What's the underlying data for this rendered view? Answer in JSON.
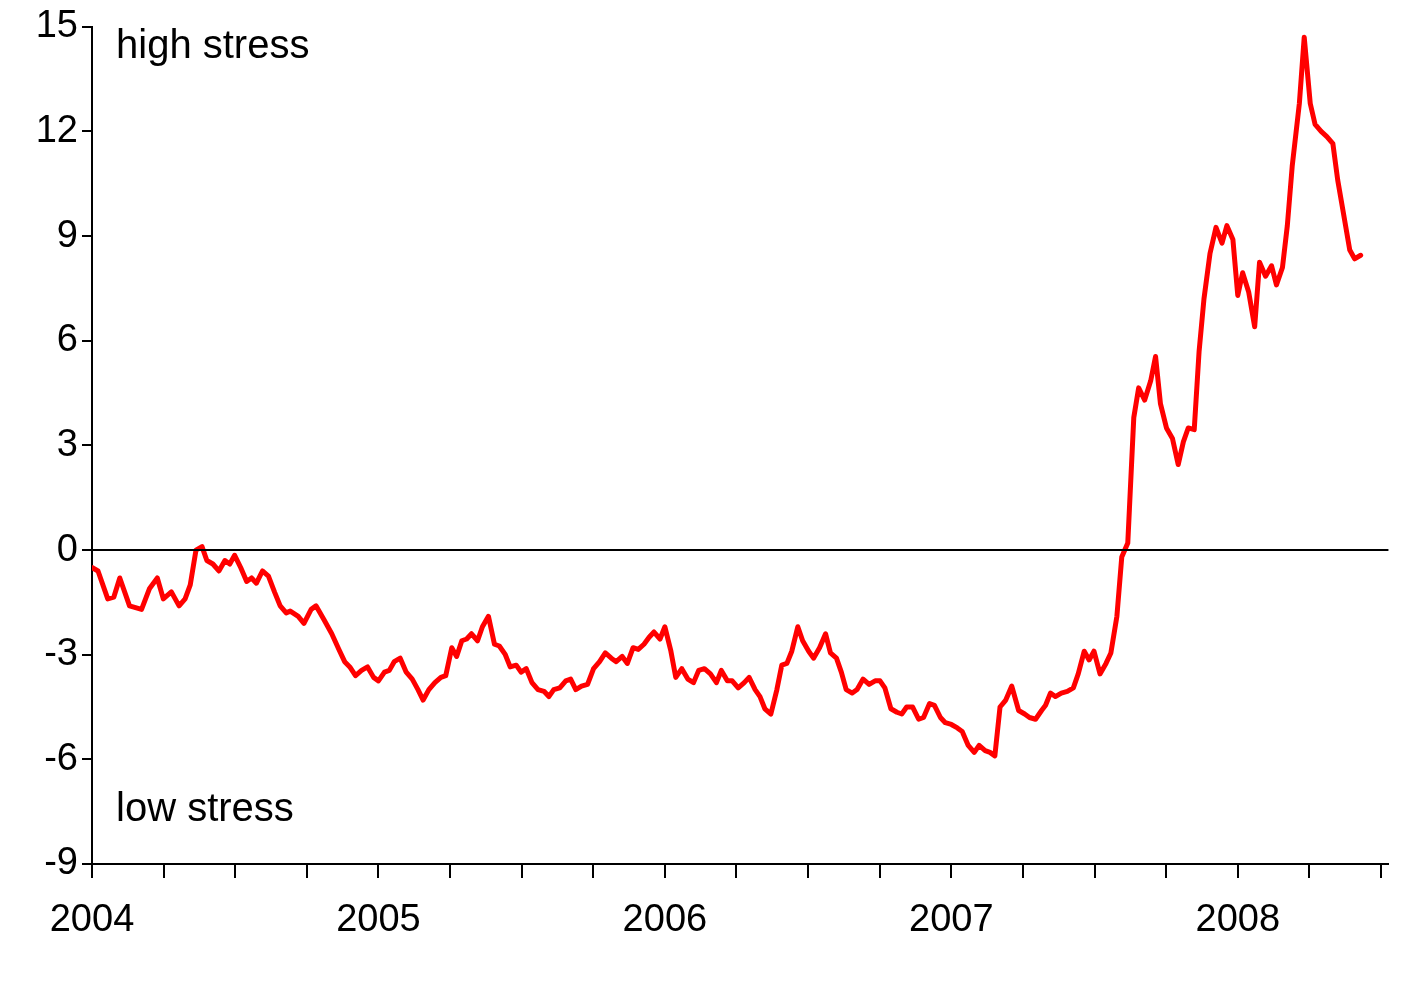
{
  "chart_data": {
    "type": "line",
    "annotations": [
      "high stress",
      "low stress"
    ],
    "x": [
      2004.0,
      2004.021,
      2004.055,
      2004.076,
      2004.097,
      2004.131,
      2004.173,
      2004.201,
      2004.228,
      2004.249,
      2004.277,
      2004.304,
      2004.325,
      2004.343,
      2004.363,
      2004.384,
      2004.401,
      2004.422,
      2004.443,
      2004.464,
      2004.481,
      2004.498,
      2004.519,
      2004.54,
      2004.557,
      2004.574,
      2004.595,
      2004.616,
      2004.637,
      2004.657,
      2004.678,
      2004.692,
      2004.72,
      2004.74,
      2004.765,
      2004.782,
      2004.81,
      2004.837,
      2004.862,
      2004.882,
      2004.9,
      2004.92,
      2004.941,
      2004.962,
      2004.983,
      2005.0,
      2005.021,
      2005.038,
      2005.055,
      2005.076,
      2005.097,
      2005.118,
      2005.138,
      2005.156,
      2005.176,
      2005.197,
      2005.218,
      2005.235,
      2005.256,
      2005.273,
      2005.291,
      2005.308,
      2005.325,
      2005.346,
      2005.363,
      2005.384,
      2005.405,
      2005.422,
      2005.443,
      2005.46,
      2005.481,
      2005.498,
      2005.516,
      2005.536,
      2005.557,
      2005.578,
      2005.595,
      2005.612,
      2005.633,
      2005.654,
      2005.671,
      2005.689,
      2005.709,
      2005.73,
      2005.751,
      2005.772,
      2005.792,
      2005.813,
      2005.83,
      2005.851,
      2005.869,
      2005.889,
      2005.907,
      2005.927,
      2005.945,
      2005.962,
      2005.983,
      2006.0,
      2006.021,
      2006.038,
      2006.059,
      2006.08,
      2006.1,
      2006.118,
      2006.138,
      2006.159,
      2006.18,
      2006.197,
      2006.218,
      2006.235,
      2006.256,
      2006.277,
      2006.294,
      2006.315,
      2006.332,
      2006.349,
      2006.37,
      2006.391,
      2006.408,
      2006.426,
      2006.443,
      2006.464,
      2006.481,
      2006.502,
      2006.519,
      2006.54,
      2006.561,
      2006.578,
      2006.599,
      2006.616,
      2006.633,
      2006.654,
      2006.671,
      2006.692,
      2006.713,
      2006.734,
      2006.751,
      2006.768,
      2006.789,
      2006.81,
      2006.827,
      2006.844,
      2006.865,
      2006.886,
      2006.903,
      2006.924,
      2006.941,
      2006.962,
      2006.979,
      2007.0,
      2007.021,
      2007.038,
      2007.059,
      2007.08,
      2007.097,
      2007.118,
      2007.135,
      2007.152,
      2007.17,
      2007.19,
      2007.211,
      2007.235,
      2007.256,
      2007.273,
      2007.294,
      2007.315,
      2007.329,
      2007.346,
      2007.363,
      2007.384,
      2007.405,
      2007.426,
      2007.443,
      2007.464,
      2007.481,
      2007.498,
      2007.519,
      2007.54,
      2007.557,
      2007.578,
      2007.595,
      2007.616,
      2007.637,
      2007.654,
      2007.675,
      2007.696,
      2007.713,
      2007.73,
      2007.751,
      2007.772,
      2007.792,
      2007.81,
      2007.827,
      2007.848,
      2007.865,
      2007.882,
      2007.903,
      2007.924,
      2007.945,
      2007.962,
      2007.983,
      2008.0,
      2008.017,
      2008.038,
      2008.059,
      2008.076,
      2008.097,
      2008.118,
      2008.135,
      2008.156,
      2008.173,
      2008.19,
      2008.215,
      2008.232,
      2008.253,
      2008.27,
      2008.291,
      2008.311,
      2008.332,
      2008.349,
      2008.37,
      2008.391,
      2008.408,
      2008.429
    ],
    "series": [
      {
        "color": "#ff0000",
        "values": [
          -0.5,
          -0.6,
          -1.4,
          -1.35,
          -0.8,
          -1.6,
          -1.7,
          -1.1,
          -0.8,
          -1.4,
          -1.2,
          -1.6,
          -1.4,
          -1.0,
          0,
          0.1,
          -0.3,
          -0.4,
          -0.6,
          -0.3,
          -0.4,
          -0.15,
          -0.5,
          -0.9,
          -0.8,
          -0.95,
          -0.6,
          -0.75,
          -1.2,
          -1.6,
          -1.8,
          -1.75,
          -1.9,
          -2.1,
          -1.7,
          -1.6,
          -2.0,
          -2.4,
          -2.85,
          -3.2,
          -3.35,
          -3.6,
          -3.45,
          -3.35,
          -3.65,
          -3.75,
          -3.5,
          -3.45,
          -3.2,
          -3.1,
          -3.5,
          -3.7,
          -4.0,
          -4.3,
          -4.0,
          -3.8,
          -3.65,
          -3.6,
          -2.8,
          -3.05,
          -2.6,
          -2.55,
          -2.4,
          -2.6,
          -2.2,
          -1.9,
          -2.7,
          -2.75,
          -3.0,
          -3.35,
          -3.3,
          -3.5,
          -3.4,
          -3.8,
          -4.0,
          -4.05,
          -4.2,
          -4.0,
          -3.95,
          -3.75,
          -3.7,
          -4.0,
          -3.9,
          -3.85,
          -3.4,
          -3.2,
          -2.95,
          -3.1,
          -3.2,
          -3.05,
          -3.25,
          -2.8,
          -2.85,
          -2.7,
          -2.5,
          -2.35,
          -2.55,
          -2.2,
          -2.9,
          -3.65,
          -3.4,
          -3.7,
          -3.8,
          -3.45,
          -3.4,
          -3.55,
          -3.8,
          -3.45,
          -3.75,
          -3.75,
          -3.95,
          -3.8,
          -3.65,
          -4.0,
          -4.2,
          -4.55,
          -4.7,
          -4.0,
          -3.3,
          -3.25,
          -2.9,
          -2.2,
          -2.6,
          -2.9,
          -3.1,
          -2.8,
          -2.4,
          -2.95,
          -3.1,
          -3.5,
          -4.0,
          -4.1,
          -4.0,
          -3.7,
          -3.85,
          -3.75,
          -3.75,
          -3.95,
          -4.55,
          -4.65,
          -4.7,
          -4.5,
          -4.5,
          -4.85,
          -4.8,
          -4.4,
          -4.45,
          -4.8,
          -4.95,
          -5.0,
          -5.1,
          -5.2,
          -5.6,
          -5.8,
          -5.6,
          -5.75,
          -5.8,
          -5.9,
          -4.5,
          -4.3,
          -3.9,
          -4.6,
          -4.7,
          -4.8,
          -4.85,
          -4.6,
          -4.45,
          -4.1,
          -4.2,
          -4.1,
          -4.05,
          -3.95,
          -3.55,
          -2.9,
          -3.15,
          -2.9,
          -3.55,
          -3.25,
          -2.95,
          -1.9,
          -0.2,
          0.2,
          3.8,
          4.65,
          4.3,
          4.85,
          5.55,
          4.2,
          3.5,
          3.2,
          2.45,
          3.1,
          3.5,
          3.45,
          5.7,
          7.2,
          8.5,
          9.25,
          8.8,
          9.3,
          8.9,
          7.3,
          7.95,
          7.4,
          6.4,
          8.25,
          7.85,
          8.15,
          7.6,
          8.1,
          9.3,
          11.0,
          12.8,
          14.7,
          12.8,
          12.2,
          12.0,
          11.85,
          11.65,
          10.6,
          9.6,
          8.6,
          8.35,
          8.45
        ]
      }
    ],
    "xlim": [
      2004,
      2008.526
    ],
    "xticks": [
      {
        "value": 2004,
        "label": "2004"
      },
      {
        "value": 2004.25,
        "label": null
      },
      {
        "value": 2004.5,
        "label": null
      },
      {
        "value": 2004.75,
        "label": null
      },
      {
        "value": 2005,
        "label": "2005"
      },
      {
        "value": 2005.25,
        "label": null
      },
      {
        "value": 2005.5,
        "label": null
      },
      {
        "value": 2005.75,
        "label": null
      },
      {
        "value": 2006,
        "label": "2006"
      },
      {
        "value": 2006.25,
        "label": null
      },
      {
        "value": 2006.5,
        "label": null
      },
      {
        "value": 2006.75,
        "label": null
      },
      {
        "value": 2007,
        "label": "2007"
      },
      {
        "value": 2007.25,
        "label": null
      },
      {
        "value": 2007.5,
        "label": null
      },
      {
        "value": 2007.75,
        "label": null
      },
      {
        "value": 2008,
        "label": "2008"
      },
      {
        "value": 2008.25,
        "label": null
      },
      {
        "value": 2008.5,
        "label": null
      }
    ],
    "ylim": [
      -9,
      15
    ],
    "yticks": [
      -9,
      -6,
      -3,
      0,
      3,
      6,
      9,
      12,
      15
    ],
    "ref_lines": [
      {
        "axis": "y",
        "value": 0,
        "color": "#000000"
      }
    ],
    "grid": false,
    "legend": false,
    "marker": "none",
    "line_style": "solid"
  }
}
